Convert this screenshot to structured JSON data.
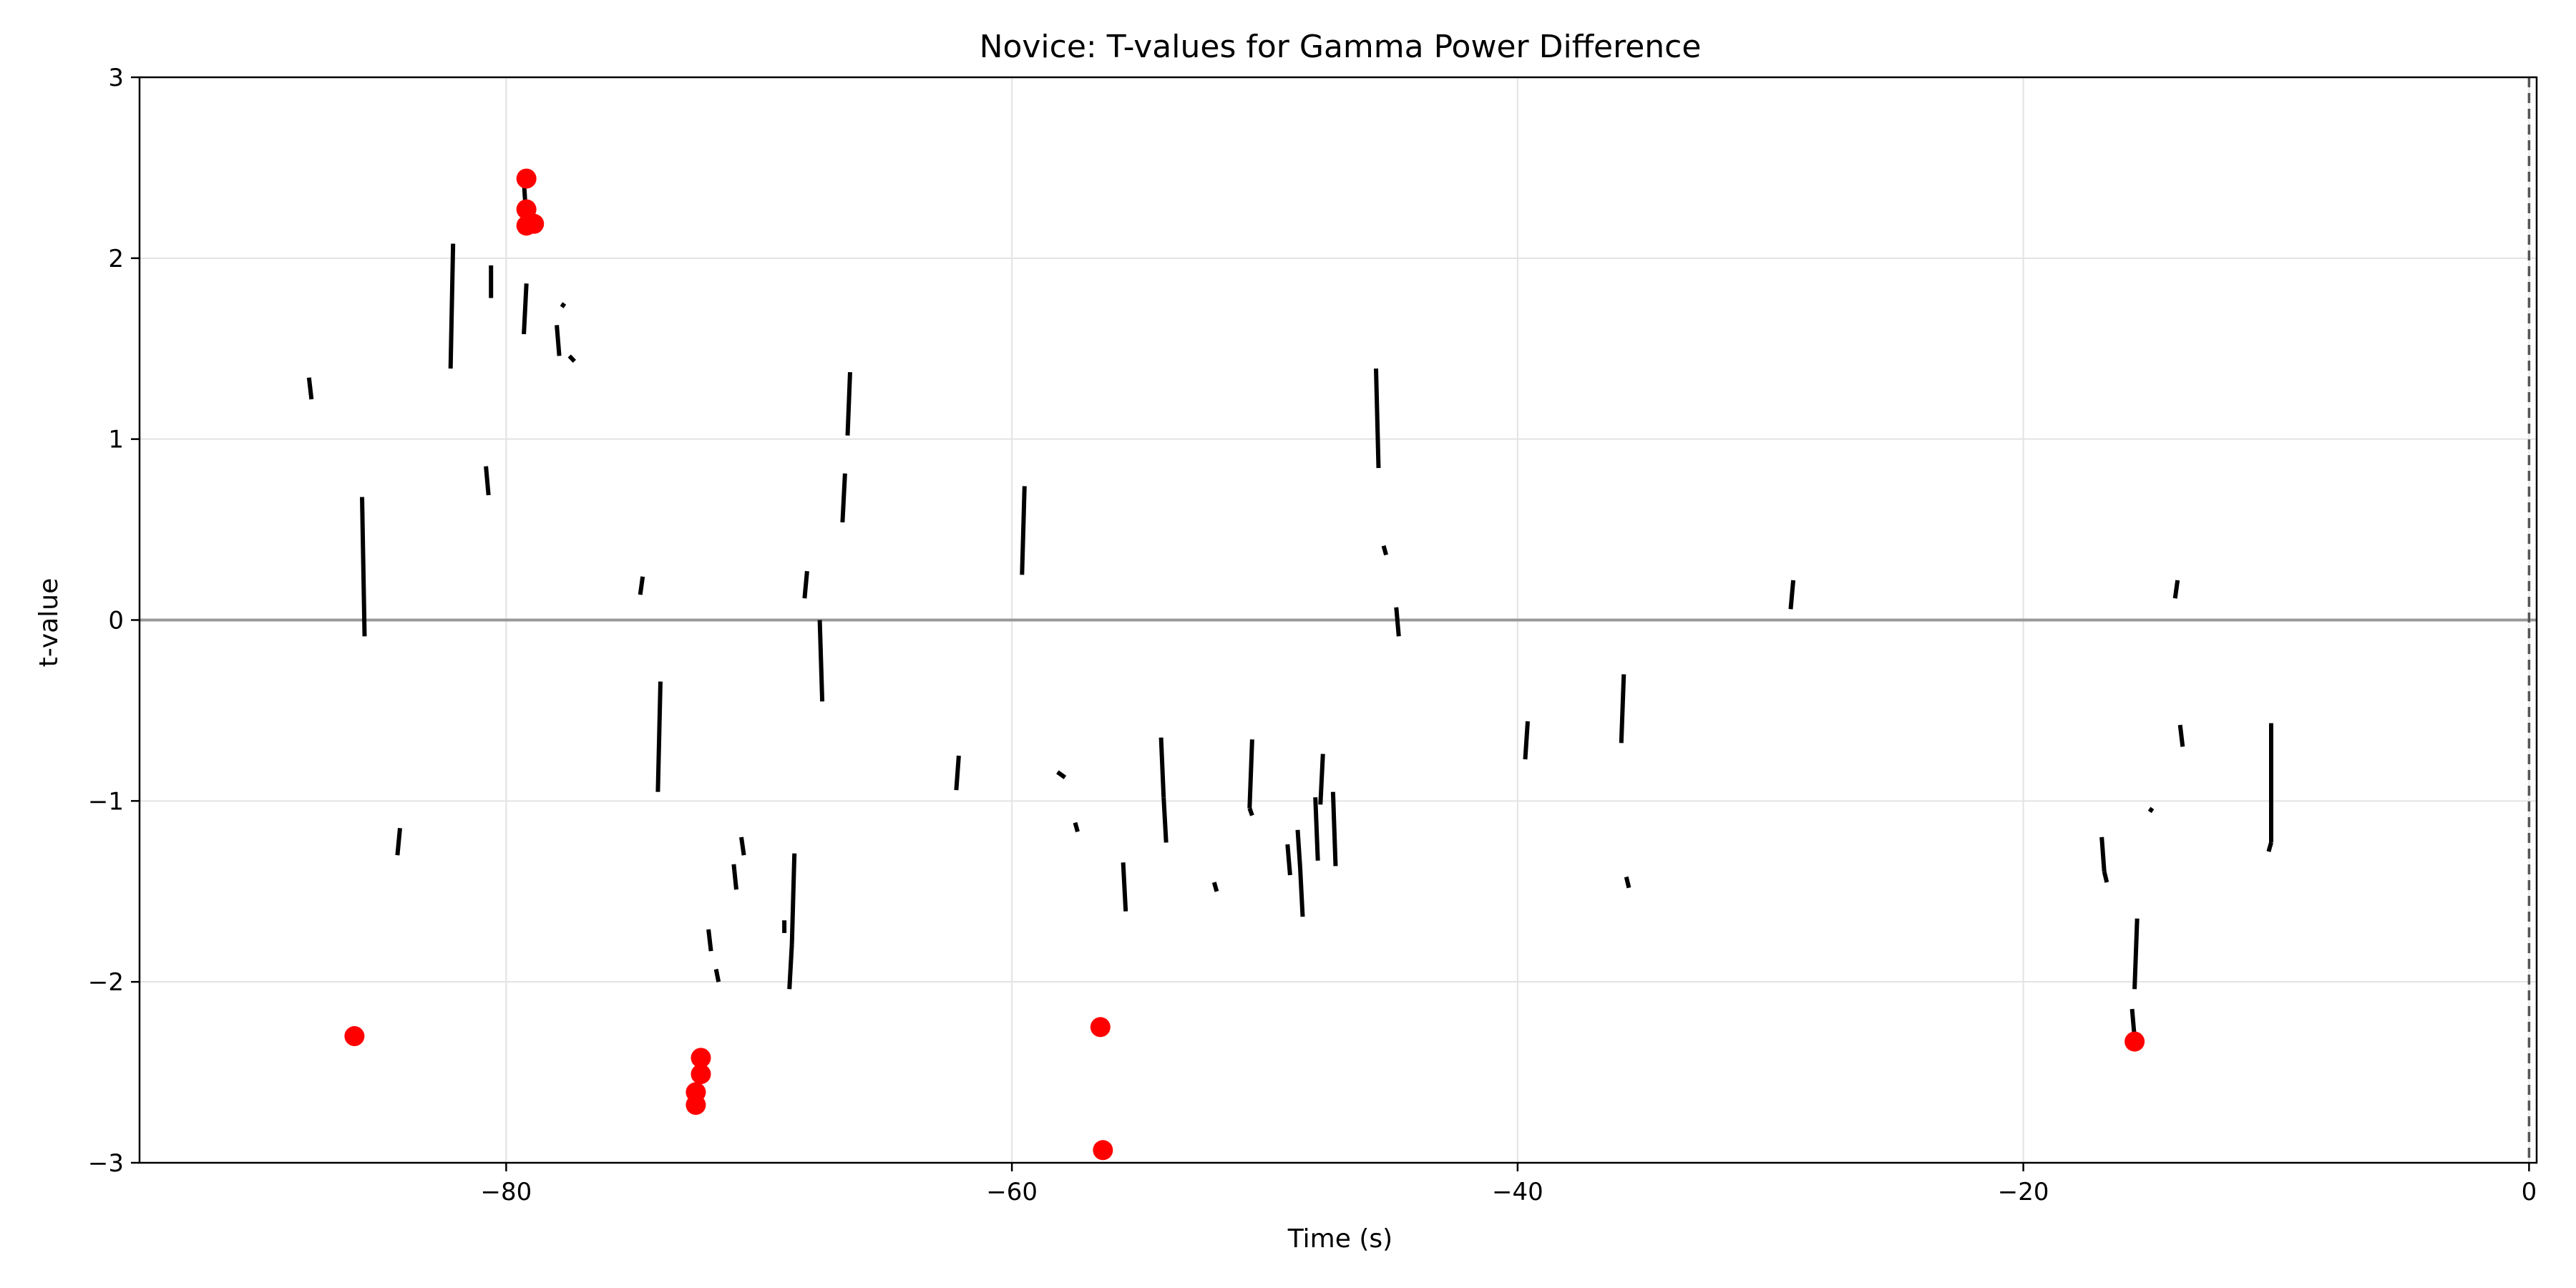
{
  "chart_data": {
    "type": "line",
    "title": "Novice: T-values for Gamma Power Difference",
    "xlabel": "Time (s)",
    "ylabel": "t-value",
    "xlim": [
      -94.5,
      0.3
    ],
    "ylim": [
      -3,
      3
    ],
    "xticks": [
      -80,
      -60,
      -40,
      -20,
      0
    ],
    "xtick_labels": [
      "−80",
      "−60",
      "−40",
      "−20",
      "0"
    ],
    "yticks": [
      -3,
      -2,
      -1,
      0,
      1,
      2,
      3
    ],
    "ytick_labels": [
      "−3",
      "−2",
      "−1",
      "0",
      "1",
      "2",
      "3"
    ],
    "grid": true,
    "zero_line": {
      "y": 0,
      "color": "#999999"
    },
    "reference_vline": {
      "x": 0,
      "style": "dashed",
      "color": "#555555"
    },
    "series": [
      {
        "color": "#000000",
        "segments": [
          [
            [
              -87.8,
              1.34
            ],
            [
              -87.7,
              1.22
            ]
          ],
          [
            [
              -85.7,
              0.68
            ],
            [
              -85.6,
              -0.09
            ]
          ],
          [
            [
              -84.2,
              -1.15
            ],
            [
              -84.3,
              -1.3
            ]
          ],
          [
            [
              -82.1,
              2.08
            ],
            [
              -82.2,
              1.39
            ]
          ],
          [
            [
              -80.6,
              1.96
            ],
            [
              -80.6,
              1.78
            ]
          ],
          [
            [
              -80.8,
              0.85
            ],
            [
              -80.7,
              0.69
            ]
          ],
          [
            [
              -79.2,
              1.86
            ],
            [
              -79.3,
              1.58
            ]
          ],
          [
            [
              -78.0,
              1.63
            ],
            [
              -77.9,
              1.46
            ]
          ],
          [
            [
              -77.8,
              1.73
            ],
            [
              -77.7,
              1.75
            ]
          ],
          [
            [
              -77.5,
              1.46
            ],
            [
              -77.3,
              1.43
            ]
          ],
          [
            [
              -79.3,
              2.43
            ],
            [
              -79.2,
              2.2
            ]
          ],
          [
            [
              -74.6,
              0.24
            ],
            [
              -74.7,
              0.14
            ]
          ],
          [
            [
              -73.9,
              -0.34
            ],
            [
              -74.0,
              -0.95
            ]
          ],
          [
            [
              -72.0,
              -1.71
            ],
            [
              -71.9,
              -1.83
            ]
          ],
          [
            [
              -71.7,
              -1.93
            ],
            [
              -71.6,
              -2.0
            ]
          ],
          [
            [
              -71.0,
              -1.35
            ],
            [
              -70.9,
              -1.49
            ]
          ],
          [
            [
              -70.7,
              -1.2
            ],
            [
              -70.6,
              -1.3
            ]
          ],
          [
            [
              -69.0,
              -1.66
            ],
            [
              -69.0,
              -1.73
            ]
          ],
          [
            [
              -68.6,
              -1.29
            ],
            [
              -68.7,
              -1.79
            ]
          ],
          [
            [
              -68.7,
              -1.79
            ],
            [
              -68.8,
              -2.04
            ]
          ],
          [
            [
              -68.1,
              0.27
            ],
            [
              -68.2,
              0.12
            ]
          ],
          [
            [
              -67.6,
              0.0
            ],
            [
              -67.5,
              -0.45
            ]
          ],
          [
            [
              -66.4,
              1.37
            ],
            [
              -66.5,
              1.02
            ]
          ],
          [
            [
              -66.6,
              0.81
            ],
            [
              -66.7,
              0.54
            ]
          ],
          [
            [
              -62.1,
              -0.75
            ],
            [
              -62.2,
              -0.94
            ]
          ],
          [
            [
              -59.5,
              0.74
            ],
            [
              -59.6,
              0.25
            ]
          ],
          [
            [
              -58.2,
              -0.84
            ],
            [
              -57.9,
              -0.87
            ]
          ],
          [
            [
              -57.5,
              -1.12
            ],
            [
              -57.4,
              -1.17
            ]
          ],
          [
            [
              -55.6,
              -1.34
            ],
            [
              -55.5,
              -1.61
            ]
          ],
          [
            [
              -54.1,
              -0.65
            ],
            [
              -54.0,
              -0.98
            ]
          ],
          [
            [
              -54.0,
              -0.98
            ],
            [
              -53.9,
              -1.23
            ]
          ],
          [
            [
              -52.0,
              -1.45
            ],
            [
              -51.9,
              -1.5
            ]
          ],
          [
            [
              -50.5,
              -0.66
            ],
            [
              -50.6,
              -1.04
            ]
          ],
          [
            [
              -50.6,
              -1.04
            ],
            [
              -50.5,
              -1.08
            ]
          ],
          [
            [
              -49.1,
              -1.24
            ],
            [
              -49.0,
              -1.41
            ]
          ],
          [
            [
              -48.7,
              -1.16
            ],
            [
              -48.6,
              -1.37
            ]
          ],
          [
            [
              -48.6,
              -1.37
            ],
            [
              -48.5,
              -1.64
            ]
          ],
          [
            [
              -48.0,
              -0.98
            ],
            [
              -47.9,
              -1.33
            ]
          ],
          [
            [
              -47.7,
              -0.74
            ],
            [
              -47.8,
              -1.02
            ]
          ],
          [
            [
              -47.3,
              -0.95
            ],
            [
              -47.2,
              -1.36
            ]
          ],
          [
            [
              -45.6,
              1.39
            ],
            [
              -45.5,
              0.84
            ]
          ],
          [
            [
              -45.3,
              0.41
            ],
            [
              -45.2,
              0.36
            ]
          ],
          [
            [
              -44.8,
              0.07
            ],
            [
              -44.7,
              -0.09
            ]
          ],
          [
            [
              -39.6,
              -0.56
            ],
            [
              -39.7,
              -0.77
            ]
          ],
          [
            [
              -35.8,
              -0.3
            ],
            [
              -35.9,
              -0.68
            ]
          ],
          [
            [
              -35.7,
              -1.42
            ],
            [
              -35.6,
              -1.48
            ]
          ],
          [
            [
              -29.1,
              0.22
            ],
            [
              -29.2,
              0.06
            ]
          ],
          [
            [
              -16.9,
              -1.2
            ],
            [
              -16.8,
              -1.39
            ]
          ],
          [
            [
              -16.8,
              -1.39
            ],
            [
              -16.7,
              -1.45
            ]
          ],
          [
            [
              -15.5,
              -1.65
            ],
            [
              -15.6,
              -2.04
            ]
          ],
          [
            [
              -15.7,
              -2.15
            ],
            [
              -15.6,
              -2.31
            ]
          ],
          [
            [
              -15.0,
              -1.06
            ],
            [
              -14.9,
              -1.04
            ]
          ],
          [
            [
              -13.9,
              0.22
            ],
            [
              -14.0,
              0.12
            ]
          ],
          [
            [
              -13.8,
              -0.58
            ],
            [
              -13.7,
              -0.7
            ]
          ],
          [
            [
              -10.2,
              -0.57
            ],
            [
              -10.2,
              -1.23
            ]
          ],
          [
            [
              -10.2,
              -1.23
            ],
            [
              -10.3,
              -1.28
            ]
          ]
        ]
      },
      {
        "color": "#ff0000",
        "marker": "circle",
        "points": [
          [
            -79.2,
            2.44
          ],
          [
            -79.2,
            2.27
          ],
          [
            -78.9,
            2.19
          ],
          [
            -79.2,
            2.18
          ],
          [
            -86.0,
            -2.3
          ],
          [
            -72.3,
            -2.42
          ],
          [
            -72.3,
            -2.51
          ],
          [
            -72.5,
            -2.61
          ],
          [
            -72.5,
            -2.68
          ],
          [
            -56.5,
            -2.25
          ],
          [
            -56.4,
            -2.93
          ],
          [
            -15.6,
            -2.33
          ]
        ]
      }
    ]
  }
}
